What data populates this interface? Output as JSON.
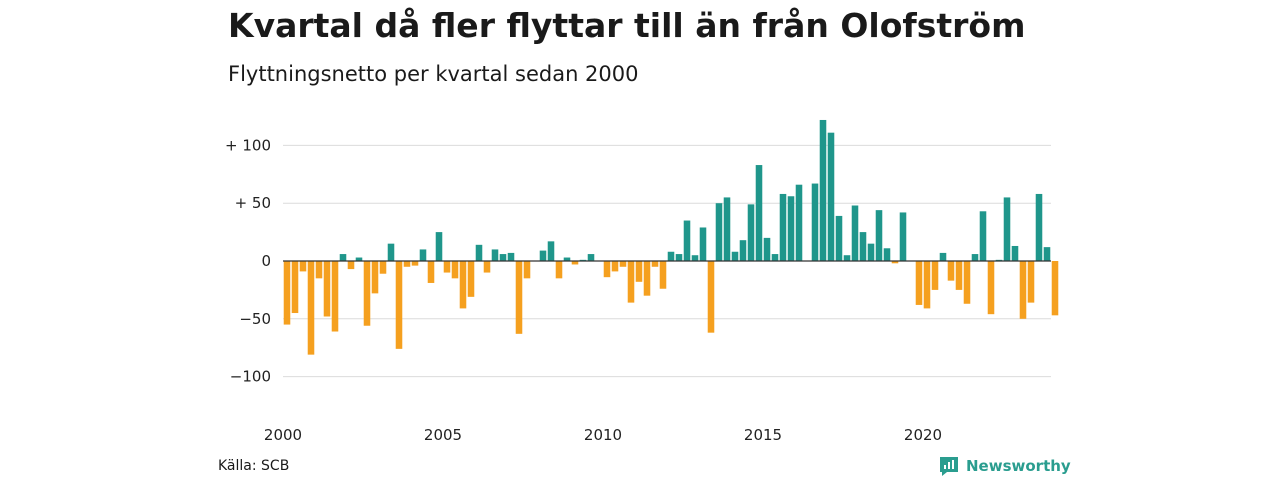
{
  "title": "Kvartal då fler flyttar till än från Olofström",
  "subtitle": "Flyttningsnetto per kvartal sedan 2000",
  "source": "Källa: SCB",
  "brand": "Newsworthy",
  "colors": {
    "positive": "#1f968b",
    "negative": "#f5a01f",
    "grid": "#dcdcdc"
  },
  "chart_data": {
    "type": "bar",
    "xlabel": "",
    "ylabel": "",
    "ylim": [
      -130,
      130
    ],
    "yticks": [
      {
        "value": 100,
        "label": "+ 100"
      },
      {
        "value": 50,
        "label": "+  50"
      },
      {
        "value": 0,
        "label": "0"
      },
      {
        "value": -50,
        "label": "−50"
      },
      {
        "value": -100,
        "label": "−100"
      }
    ],
    "xticks": [
      "2000",
      "2005",
      "2010",
      "2015",
      "2020"
    ],
    "start_year": 2000,
    "values": [
      -55,
      -45,
      -9,
      -81,
      -15,
      -48,
      -61,
      6,
      -7,
      3,
      -56,
      -28,
      -11,
      15,
      -76,
      -5,
      -4,
      10,
      -19,
      25,
      -10,
      -15,
      -41,
      -31,
      14,
      -10,
      10,
      6,
      7,
      -63,
      -15,
      0,
      9,
      17,
      -15,
      3,
      -3,
      1,
      6,
      0,
      -14,
      -9,
      -5,
      -36,
      -18,
      -30,
      -5,
      -24,
      8,
      6,
      35,
      5,
      29,
      -62,
      50,
      55,
      8,
      18,
      49,
      83,
      20,
      6,
      58,
      56,
      66,
      0,
      67,
      122,
      111,
      39,
      5,
      48,
      25,
      15,
      44,
      11,
      -2,
      42,
      0,
      -38,
      -41,
      -25,
      7,
      -17,
      -25,
      -37,
      6,
      43,
      -46,
      1,
      55,
      13,
      -50,
      -36,
      58,
      12,
      -47
    ]
  }
}
